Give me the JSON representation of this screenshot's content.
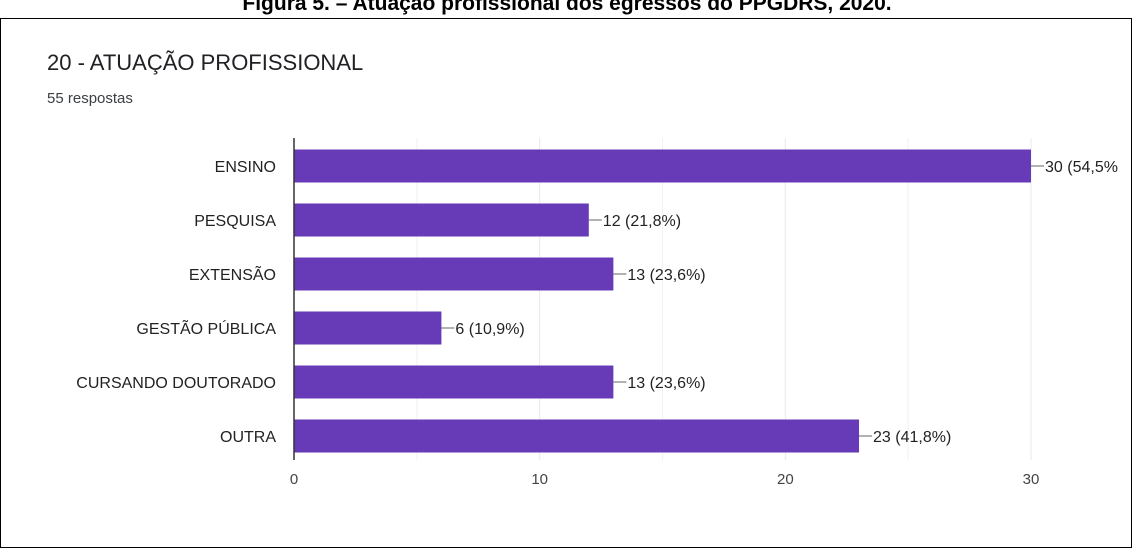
{
  "caption": "Figura 5. – Atuação profissional dos egressos do PPGDRS, 2020.",
  "form": {
    "title": "20 - ATUAÇÃO PROFISSIONAL",
    "responses": "55 respostas"
  },
  "colors": {
    "bar": "#673ab7",
    "grid": "#e8e8e8",
    "axis": "#333333"
  },
  "chart_data": {
    "type": "bar",
    "orientation": "horizontal",
    "categories": [
      "ENSINO",
      "PESQUISA",
      "EXTENSÃO",
      "GESTÃO PÚBLICA",
      "CURSANDO DOUTORADO",
      "OUTRA"
    ],
    "values": [
      30,
      12,
      13,
      6,
      13,
      23
    ],
    "data_labels": [
      "30 (54,5%",
      "12 (21,8%)",
      "13 (23,6%)",
      "6 (10,9%)",
      "13 (23,6%)",
      "23 (41,8%)"
    ],
    "xlim": [
      0,
      30
    ],
    "xticks": [
      0,
      10,
      20,
      30
    ],
    "grid": true,
    "legend": "none"
  }
}
